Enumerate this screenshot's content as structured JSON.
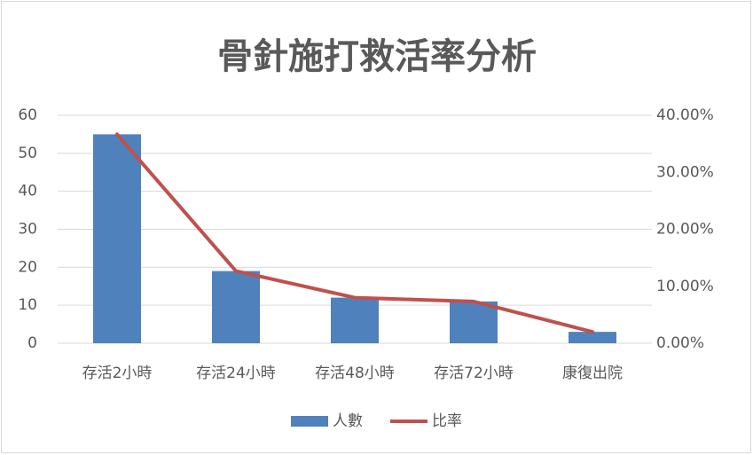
{
  "chart_data": {
    "type": "bar",
    "title": "骨針施打救活率分析",
    "categories": [
      "存活2小時",
      "存活24小時",
      "存活48小時",
      "存活72小時",
      "康復出院"
    ],
    "series": [
      {
        "name": "人數",
        "type": "bar",
        "color": "#4f81bd",
        "values": [
          55,
          19,
          12,
          11,
          3
        ]
      },
      {
        "name": "比率",
        "type": "line",
        "axis": "y2",
        "color": "#c0504d",
        "values": [
          36.67,
          12.67,
          8,
          7.33,
          2
        ]
      }
    ],
    "ylim": [
      0,
      60
    ],
    "yticks": [
      0,
      10,
      20,
      30,
      40,
      50,
      60
    ],
    "y2lim": [
      0,
      40
    ],
    "y2ticks": [
      {
        "value": 0,
        "label": "0.00%"
      },
      {
        "value": 10,
        "label": "10.00%"
      },
      {
        "value": 20,
        "label": "20.00%"
      },
      {
        "value": 30,
        "label": "30.00%"
      },
      {
        "value": 40,
        "label": "40.00%"
      }
    ],
    "grid": true,
    "legend": "bottom"
  }
}
